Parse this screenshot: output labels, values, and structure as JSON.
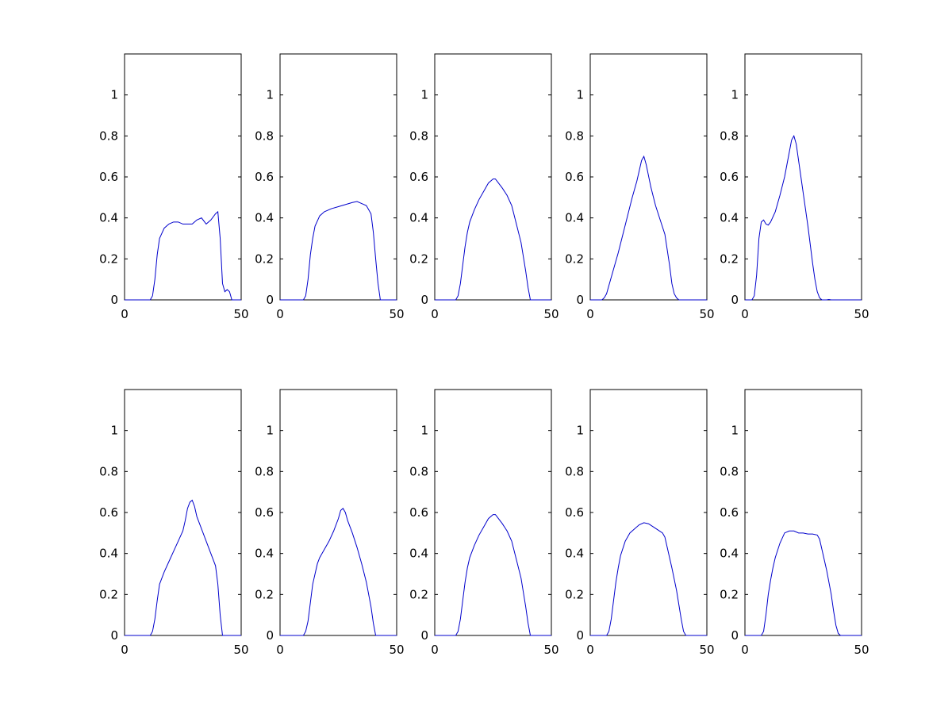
{
  "figure": {
    "background": "#ffffff",
    "axis_color": "#000000",
    "line_color": "#0000cc",
    "layout": "2 rows x 5 columns of subplots"
  },
  "chart_data": [
    {
      "type": "line",
      "xlim": [
        0,
        50
      ],
      "ylim": [
        0,
        1.2
      ],
      "xticks": [
        "0",
        "50"
      ],
      "yticks": [
        "0",
        "0.2",
        "0.4",
        "0.6",
        "0.8",
        "1"
      ],
      "grid": false,
      "x": [
        0,
        11,
        12,
        13,
        14,
        15,
        17,
        19,
        21,
        23,
        25,
        27,
        29,
        31,
        33,
        35,
        37,
        39,
        40,
        41,
        42,
        43,
        44,
        45,
        46,
        50
      ],
      "y": [
        0,
        0,
        0.02,
        0.1,
        0.22,
        0.3,
        0.35,
        0.37,
        0.38,
        0.38,
        0.37,
        0.37,
        0.37,
        0.39,
        0.4,
        0.37,
        0.39,
        0.42,
        0.43,
        0.3,
        0.08,
        0.04,
        0.05,
        0.04,
        0,
        0
      ]
    },
    {
      "type": "line",
      "xlim": [
        0,
        50
      ],
      "ylim": [
        0,
        1.2
      ],
      "xticks": [
        "0",
        "50"
      ],
      "yticks": [
        "0",
        "0.2",
        "0.4",
        "0.6",
        "0.8",
        "1"
      ],
      "grid": false,
      "x": [
        0,
        10,
        11,
        12,
        13,
        14,
        15,
        17,
        19,
        22,
        25,
        28,
        31,
        33,
        35,
        37,
        39,
        40,
        41,
        42,
        43,
        50
      ],
      "y": [
        0,
        0,
        0.02,
        0.1,
        0.22,
        0.3,
        0.36,
        0.41,
        0.43,
        0.445,
        0.455,
        0.465,
        0.475,
        0.48,
        0.47,
        0.46,
        0.42,
        0.33,
        0.2,
        0.08,
        0,
        0
      ]
    },
    {
      "type": "line",
      "xlim": [
        0,
        50
      ],
      "ylim": [
        0,
        1.2
      ],
      "xticks": [
        "0",
        "50"
      ],
      "yticks": [
        "0",
        "0.2",
        "0.4",
        "0.6",
        "0.8",
        "1"
      ],
      "grid": false,
      "x": [
        0,
        9,
        10,
        11,
        12,
        13,
        14,
        15,
        17,
        19,
        21,
        23,
        25,
        26,
        27,
        29,
        31,
        33,
        35,
        37,
        39,
        40,
        41,
        50
      ],
      "y": [
        0,
        0,
        0.02,
        0.08,
        0.17,
        0.26,
        0.33,
        0.38,
        0.44,
        0.49,
        0.53,
        0.57,
        0.59,
        0.59,
        0.575,
        0.545,
        0.51,
        0.46,
        0.37,
        0.28,
        0.14,
        0.06,
        0,
        0
      ]
    },
    {
      "type": "line",
      "xlim": [
        0,
        50
      ],
      "ylim": [
        0,
        1.2
      ],
      "xticks": [
        "0",
        "50"
      ],
      "yticks": [
        "0",
        "0.2",
        "0.4",
        "0.6",
        "0.8",
        "1"
      ],
      "grid": false,
      "x": [
        0,
        5,
        6,
        7,
        8,
        10,
        12,
        14,
        16,
        18,
        20,
        21,
        22,
        23,
        24,
        26,
        28,
        30,
        32,
        34,
        35,
        36,
        37,
        38,
        39,
        50
      ],
      "y": [
        0,
        0,
        0.01,
        0.03,
        0.07,
        0.15,
        0.23,
        0.32,
        0.41,
        0.5,
        0.58,
        0.63,
        0.68,
        0.7,
        0.66,
        0.55,
        0.46,
        0.39,
        0.32,
        0.17,
        0.08,
        0.03,
        0.01,
        0,
        0,
        0
      ]
    },
    {
      "type": "line",
      "xlim": [
        0,
        50
      ],
      "ylim": [
        0,
        1.2
      ],
      "xticks": [
        "0",
        "50"
      ],
      "yticks": [
        "0",
        "0.2",
        "0.4",
        "0.6",
        "0.8",
        "1"
      ],
      "grid": false,
      "x": [
        0,
        3,
        4,
        5,
        6,
        7,
        8,
        9,
        10,
        11,
        13,
        15,
        17,
        19,
        20,
        21,
        22,
        23,
        24,
        25,
        26,
        27,
        28,
        29,
        30,
        31,
        32,
        33,
        34,
        35,
        36,
        37,
        50
      ],
      "y": [
        0,
        0,
        0.02,
        0.12,
        0.3,
        0.38,
        0.39,
        0.37,
        0.365,
        0.38,
        0.43,
        0.51,
        0.6,
        0.72,
        0.78,
        0.8,
        0.76,
        0.68,
        0.6,
        0.52,
        0.44,
        0.36,
        0.27,
        0.18,
        0.1,
        0.04,
        0.01,
        0,
        0,
        0,
        0.002,
        0,
        0
      ]
    },
    {
      "type": "line",
      "xlim": [
        0,
        50
      ],
      "ylim": [
        0,
        1.2
      ],
      "xticks": [
        "0",
        "50"
      ],
      "yticks": [
        "0",
        "0.2",
        "0.4",
        "0.6",
        "0.8",
        "1"
      ],
      "grid": false,
      "x": [
        0,
        11,
        12,
        13,
        14,
        15,
        17,
        19,
        21,
        23,
        25,
        26,
        27,
        28,
        29,
        30,
        31,
        33,
        35,
        37,
        39,
        40,
        41,
        42,
        50
      ],
      "y": [
        0,
        0,
        0.02,
        0.08,
        0.17,
        0.25,
        0.31,
        0.36,
        0.41,
        0.46,
        0.51,
        0.56,
        0.62,
        0.65,
        0.66,
        0.63,
        0.58,
        0.52,
        0.46,
        0.4,
        0.34,
        0.25,
        0.1,
        0,
        0
      ]
    },
    {
      "type": "line",
      "xlim": [
        0,
        50
      ],
      "ylim": [
        0,
        1.2
      ],
      "xticks": [
        "0",
        "50"
      ],
      "yticks": [
        "0",
        "0.2",
        "0.4",
        "0.6",
        "0.8",
        "1"
      ],
      "grid": false,
      "x": [
        0,
        10,
        11,
        12,
        13,
        14,
        15,
        16,
        17,
        19,
        21,
        23,
        25,
        26,
        27,
        28,
        29,
        31,
        33,
        35,
        37,
        39,
        40,
        41,
        42,
        50
      ],
      "y": [
        0,
        0,
        0.02,
        0.07,
        0.16,
        0.25,
        0.3,
        0.35,
        0.38,
        0.42,
        0.46,
        0.51,
        0.57,
        0.61,
        0.62,
        0.6,
        0.56,
        0.5,
        0.43,
        0.35,
        0.26,
        0.14,
        0.06,
        0,
        0,
        0
      ]
    },
    {
      "type": "line",
      "xlim": [
        0,
        50
      ],
      "ylim": [
        0,
        1.2
      ],
      "xticks": [
        "0",
        "50"
      ],
      "yticks": [
        "0",
        "0.2",
        "0.4",
        "0.6",
        "0.8",
        "1"
      ],
      "grid": false,
      "x": [
        0,
        9,
        10,
        11,
        12,
        13,
        14,
        15,
        17,
        19,
        21,
        23,
        25,
        26,
        27,
        29,
        31,
        33,
        35,
        37,
        39,
        40,
        41,
        50
      ],
      "y": [
        0,
        0,
        0.02,
        0.08,
        0.17,
        0.26,
        0.33,
        0.38,
        0.44,
        0.49,
        0.53,
        0.57,
        0.59,
        0.59,
        0.575,
        0.545,
        0.51,
        0.46,
        0.37,
        0.28,
        0.14,
        0.06,
        0,
        0
      ]
    },
    {
      "type": "line",
      "xlim": [
        0,
        50
      ],
      "ylim": [
        0,
        1.2
      ],
      "xticks": [
        "0",
        "50"
      ],
      "yticks": [
        "0",
        "0.2",
        "0.4",
        "0.6",
        "0.8",
        "1"
      ],
      "grid": false,
      "x": [
        0,
        7,
        8,
        9,
        10,
        11,
        12,
        13,
        15,
        17,
        19,
        21,
        23,
        25,
        27,
        29,
        31,
        32,
        33,
        35,
        37,
        38,
        39,
        40,
        41,
        50
      ],
      "y": [
        0,
        0,
        0.02,
        0.08,
        0.17,
        0.26,
        0.33,
        0.39,
        0.46,
        0.5,
        0.52,
        0.54,
        0.55,
        0.545,
        0.53,
        0.515,
        0.5,
        0.48,
        0.43,
        0.33,
        0.22,
        0.15,
        0.08,
        0.02,
        0,
        0
      ]
    },
    {
      "type": "line",
      "xlim": [
        0,
        50
      ],
      "ylim": [
        0,
        1.2
      ],
      "xticks": [
        "0",
        "50"
      ],
      "yticks": [
        "0",
        "0.2",
        "0.4",
        "0.6",
        "0.8",
        "1"
      ],
      "grid": false,
      "x": [
        0,
        7,
        8,
        9,
        10,
        11,
        12,
        13,
        15,
        17,
        19,
        21,
        23,
        25,
        27,
        29,
        31,
        32,
        33,
        35,
        37,
        38,
        39,
        40,
        41,
        50
      ],
      "y": [
        0,
        0,
        0.02,
        0.1,
        0.2,
        0.27,
        0.33,
        0.38,
        0.45,
        0.5,
        0.51,
        0.51,
        0.5,
        0.5,
        0.495,
        0.495,
        0.49,
        0.47,
        0.42,
        0.32,
        0.2,
        0.12,
        0.05,
        0.01,
        0,
        0
      ]
    }
  ]
}
